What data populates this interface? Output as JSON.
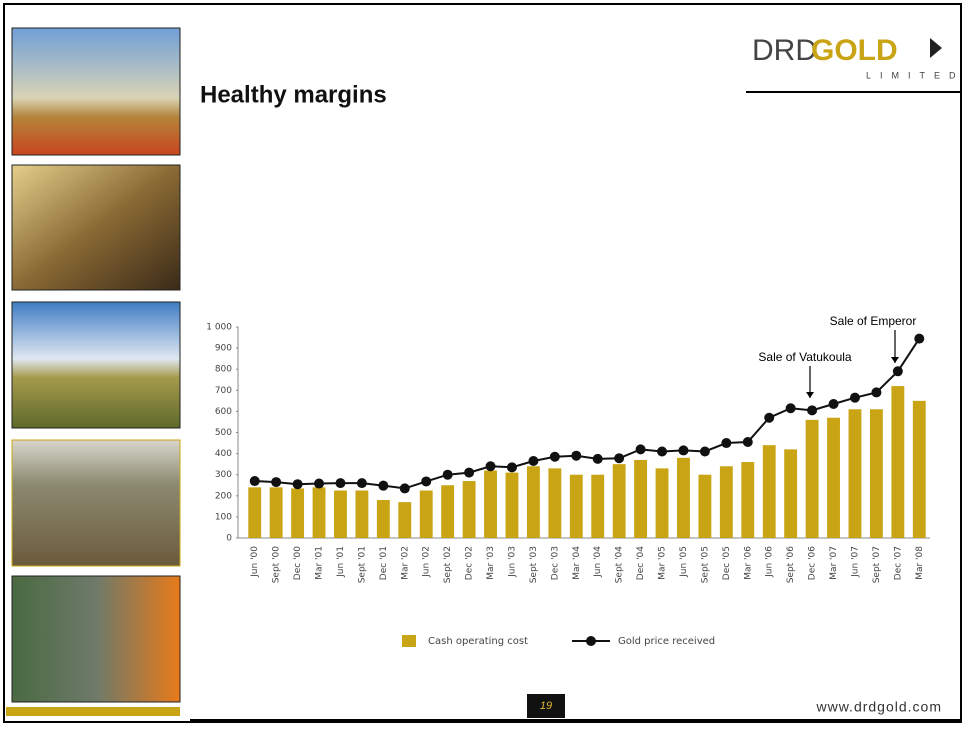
{
  "logo": {
    "brand_a": "DRD",
    "brand_b": "GOLD",
    "sub": "LIMITED"
  },
  "slide_title": "Healthy margins",
  "chart_data": {
    "type": "combo",
    "categories": [
      "Jun '00",
      "Sept '00",
      "Dec '00",
      "Mar '01",
      "Jun '01",
      "Sept '01",
      "Dec '01",
      "Mar '02",
      "Jun '02",
      "Sept '02",
      "Dec '02",
      "Mar '03",
      "Jun '03",
      "Sept '03",
      "Dec '03",
      "Mar '04",
      "Jun '04",
      "Sept '04",
      "Dec '04",
      "Mar '05",
      "Jun '05",
      "Sept '05",
      "Dec '05",
      "Mar '06",
      "Jun '06",
      "Sept '06",
      "Dec '06",
      "Mar '07",
      "Jun '07",
      "Sept '07",
      "Dec '07",
      "Mar '08"
    ],
    "series": [
      {
        "name": "Cash operating cost",
        "type": "bar",
        "color": "#c9a414",
        "values": [
          240,
          240,
          235,
          240,
          225,
          225,
          180,
          170,
          225,
          250,
          270,
          320,
          310,
          340,
          330,
          300,
          300,
          350,
          370,
          330,
          380,
          300,
          340,
          360,
          440,
          420,
          560,
          570,
          610,
          610,
          720,
          650
        ]
      },
      {
        "name": "Gold price received",
        "type": "line",
        "color": "#111111",
        "values": [
          270,
          265,
          255,
          258,
          260,
          260,
          248,
          235,
          268,
          300,
          310,
          340,
          335,
          365,
          385,
          390,
          375,
          378,
          420,
          410,
          415,
          410,
          450,
          455,
          570,
          615,
          605,
          635,
          665,
          690,
          790,
          945
        ]
      }
    ],
    "ylim": [
      0,
      1000
    ],
    "yticks": [
      0,
      100,
      200,
      300,
      400,
      500,
      600,
      700,
      800,
      900,
      {
        "value": 1000,
        "label": "1 000"
      }
    ],
    "annotations": [
      "Sale of Vatukoula",
      "Sale of Emperor"
    ]
  },
  "footer": {
    "page": "19",
    "url": "www.drdgold.com"
  }
}
